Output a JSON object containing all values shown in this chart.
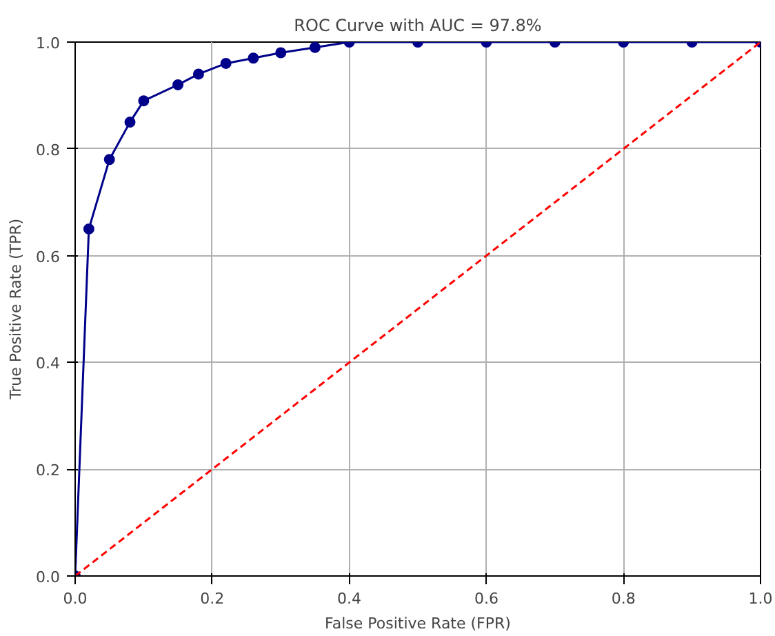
{
  "chart_data": {
    "type": "line",
    "title": "ROC Curve with AUC = 97.8%",
    "xlabel": "False Positive Rate (FPR)",
    "ylabel": "True Positive Rate (TPR)",
    "xlim": [
      0,
      1
    ],
    "ylim": [
      0,
      1
    ],
    "xticks": [
      {
        "value": 0,
        "label": "0.0"
      },
      0.2,
      0.4,
      0.6,
      0.8,
      {
        "value": 1,
        "label": "1.0"
      }
    ],
    "yticks": [
      {
        "value": 0,
        "label": "0.0"
      },
      0.2,
      0.4,
      0.6,
      0.8,
      {
        "value": 1,
        "label": "1.0"
      }
    ],
    "grid": true,
    "series": [
      {
        "color": "#00008b",
        "marker": "circle",
        "line_style": "solid",
        "x": [
          0,
          0.02,
          0.05,
          0.08,
          0.1,
          0.15,
          0.18,
          0.22,
          0.26,
          0.3,
          0.35,
          0.4,
          0.5,
          0.6,
          0.7,
          0.8,
          0.9,
          1.0
        ],
        "values": [
          0,
          0.65,
          0.78,
          0.85,
          0.89,
          0.92,
          0.94,
          0.96,
          0.97,
          0.98,
          0.99,
          1.0,
          1.0,
          1.0,
          1.0,
          1.0,
          1.0,
          1.0
        ]
      },
      {
        "color": "#ff0000",
        "marker": "none",
        "line_style": "dashed",
        "x": [
          0,
          1
        ],
        "values": [
          0,
          1
        ]
      }
    ]
  }
}
